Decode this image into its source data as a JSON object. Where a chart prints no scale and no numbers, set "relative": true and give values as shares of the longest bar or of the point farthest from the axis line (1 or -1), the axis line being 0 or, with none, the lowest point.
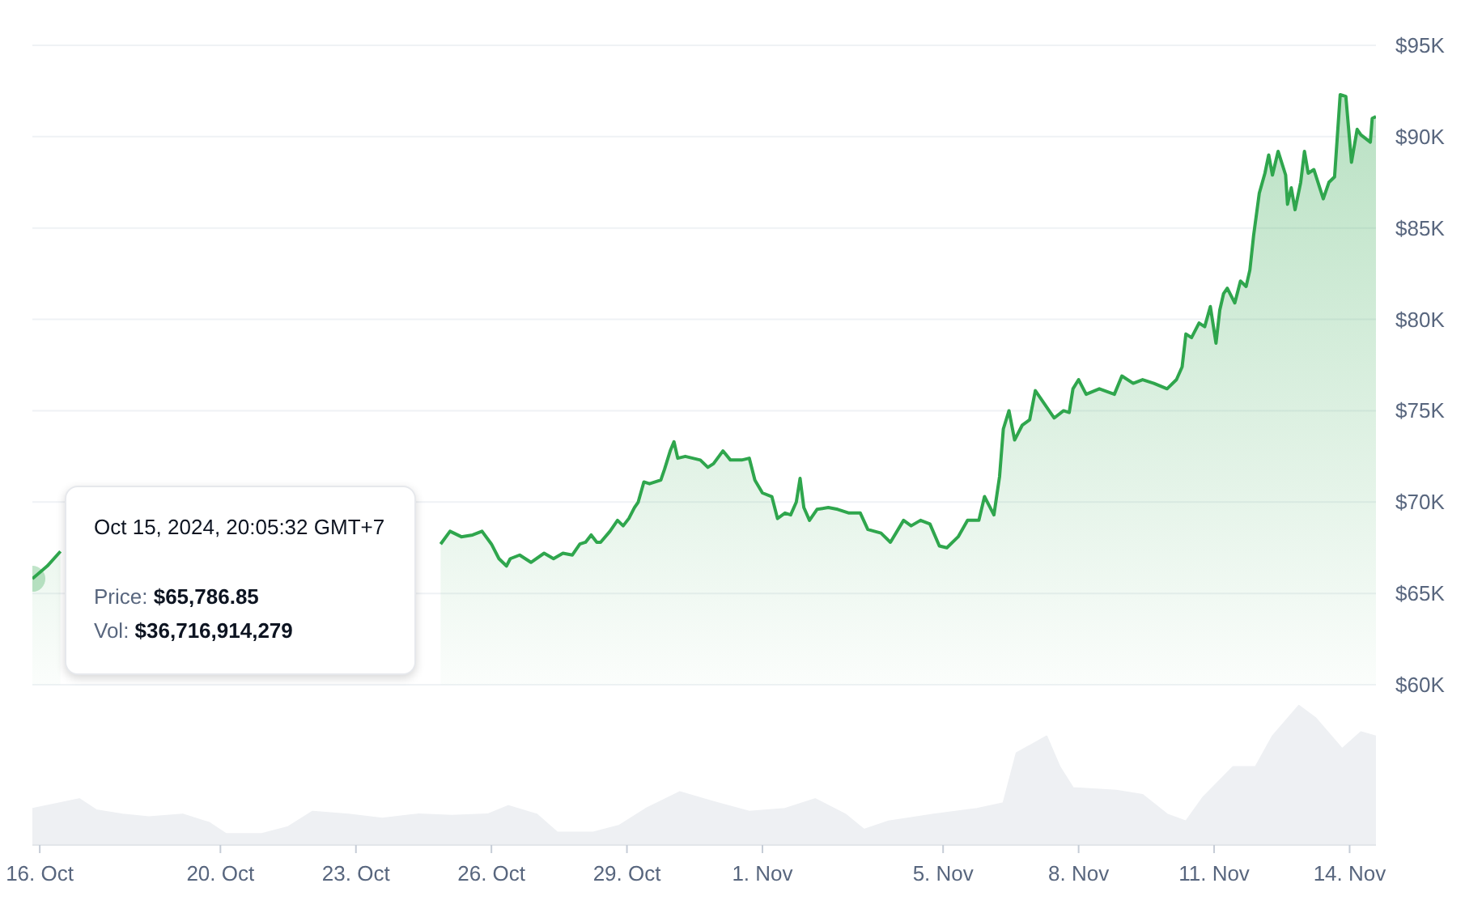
{
  "chart_data": [
    {
      "type": "area",
      "x": [
        "2024-10-15T20:05",
        "2024-10-16T04:00",
        "2024-10-16T11:00",
        "2024-10-17T00:00",
        "2024-10-18T00:00",
        "2024-10-19T00:00",
        "2024-10-20T00:00",
        "2024-10-21T00:00",
        "2024-10-22T00:00",
        "2024-10-23T00:00",
        "2024-10-24T00:00",
        "2024-10-24T12:00",
        "2024-10-24T21:00",
        "2024-10-25T02:00",
        "2024-10-25T08:00",
        "2024-10-25T14:00",
        "2024-10-25T19:00",
        "2024-10-26T00:00",
        "2024-10-26T04:00",
        "2024-10-26T08:00",
        "2024-10-26T10:00",
        "2024-10-26T15:00",
        "2024-10-26T21:00",
        "2024-10-27T04:00",
        "2024-10-27T09:00",
        "2024-10-27T14:00",
        "2024-10-27T19:00",
        "2024-10-27T23:00",
        "2024-10-28T02:00",
        "2024-10-28T05:00",
        "2024-10-28T08:00",
        "2024-10-28T10:00",
        "2024-10-28T15:00",
        "2024-10-28T19:00",
        "2024-10-28T22:00",
        "2024-10-29T01:00",
        "2024-10-29T04:00",
        "2024-10-29T06:00",
        "2024-10-29T09:00",
        "2024-10-29T12:00",
        "2024-10-29T18:00",
        "2024-10-29T20:00",
        "2024-10-29T23:00",
        "2024-10-30T01:00",
        "2024-10-30T03:00",
        "2024-10-30T07:00",
        "2024-10-30T11:00",
        "2024-10-30T15:00",
        "2024-10-30T19:00",
        "2024-10-30T22:00",
        "2024-10-31T03:00",
        "2024-10-31T07:00",
        "2024-10-31T13:00",
        "2024-10-31T17:00",
        "2024-10-31T20:00",
        "2024-11-01T00:00",
        "2024-11-01T05:00",
        "2024-11-01T08:00",
        "2024-11-01T12:00",
        "2024-11-01T15:00",
        "2024-11-01T18:00",
        "2024-11-01T20:00",
        "2024-11-01T22:00",
        "2024-11-02T01:00",
        "2024-11-02T05:00",
        "2024-11-02T11:00",
        "2024-11-02T16:00",
        "2024-11-02T22:00",
        "2024-11-03T04:00",
        "2024-11-03T08:00",
        "2024-11-03T15:00",
        "2024-11-03T20:00",
        "2024-11-04T03:00",
        "2024-11-04T07:00",
        "2024-11-04T12:00",
        "2024-11-04T17:00",
        "2024-11-04T22:00",
        "2024-11-05T02:00",
        "2024-11-05T08:00",
        "2024-11-05T13:00",
        "2024-11-05T19:00",
        "2024-11-05T22:00",
        "2024-11-06T03:00",
        "2024-11-06T06:00",
        "2024-11-06T08:00",
        "2024-11-06T11:00",
        "2024-11-06T14:00",
        "2024-11-06T18:00",
        "2024-11-06T22:00",
        "2024-11-07T01:00",
        "2024-11-07T05:00",
        "2024-11-07T11:00",
        "2024-11-07T16:00",
        "2024-11-07T19:00",
        "2024-11-07T21:00",
        "2024-11-08T00:00",
        "2024-11-08T04:00",
        "2024-11-08T11:00",
        "2024-11-08T19:00",
        "2024-11-08T23:00",
        "2024-11-09T05:00",
        "2024-11-09T10:00",
        "2024-11-09T16:00",
        "2024-11-09T23:00",
        "2024-11-10T04:00",
        "2024-11-10T07:00",
        "2024-11-10T09:00",
        "2024-11-10T12:00",
        "2024-11-10T16:00",
        "2024-11-10T19:00",
        "2024-11-10T22:00",
        "2024-11-11T01:00",
        "2024-11-11T03:00",
        "2024-11-11T05:00",
        "2024-11-11T07:00",
        "2024-11-11T11:00",
        "2024-11-11T14:00",
        "2024-11-11T17:00",
        "2024-11-11T19:00",
        "2024-11-11T21:00",
        "2024-11-12T00:00",
        "2024-11-12T03:00",
        "2024-11-12T05:00",
        "2024-11-12T07:00",
        "2024-11-12T10:00",
        "2024-11-12T14:00",
        "2024-11-12T15:00",
        "2024-11-12T17:00",
        "2024-11-12T19:00",
        "2024-11-12T22:00",
        "2024-11-13T00:00",
        "2024-11-13T02:00",
        "2024-11-13T05:00",
        "2024-11-13T10:00",
        "2024-11-13T13:00",
        "2024-11-13T16:00",
        "2024-11-13T19:00",
        "2024-11-13T22:00",
        "2024-11-14T01:00",
        "2024-11-14T04:00",
        "2024-11-14T06:00",
        "2024-11-14T11:00",
        "2024-11-14T12:00",
        "2024-11-14T14:00"
      ],
      "series": [
        {
          "color": "#2fa64d",
          "values": [
            65800,
            66500,
            67300,
            null,
            null,
            null,
            null,
            null,
            null,
            null,
            null,
            null,
            67700,
            68400,
            68100,
            68200,
            68400,
            67700,
            66900,
            66500,
            66900,
            67100,
            66700,
            67200,
            66900,
            67200,
            67100,
            67700,
            67800,
            68200,
            67800,
            67800,
            68400,
            69000,
            68700,
            69100,
            69700,
            70000,
            71100,
            71000,
            71200,
            71800,
            72800,
            73300,
            72400,
            72500,
            72400,
            72300,
            71900,
            72100,
            72800,
            72300,
            72300,
            72400,
            71200,
            70500,
            70300,
            69100,
            69400,
            69300,
            70000,
            71300,
            69700,
            69000,
            69600,
            69700,
            69600,
            69400,
            69400,
            68500,
            68300,
            67800,
            69000,
            68700,
            69000,
            68800,
            67600,
            67500,
            68100,
            69000,
            69000,
            70300,
            69300,
            71400,
            74000,
            75000,
            73400,
            74200,
            74500,
            76100,
            75500,
            74600,
            75000,
            74900,
            76200,
            76700,
            75900,
            76200,
            75900,
            76900,
            76500,
            76700,
            76500,
            76200,
            76700,
            77400,
            79200,
            79000,
            79800,
            79600,
            80700,
            78700,
            80500,
            81400,
            81700,
            80900,
            82100,
            81800,
            82700,
            84600,
            86900,
            88000,
            89000,
            87900,
            89200,
            87900,
            86300,
            87200,
            86000,
            87500,
            89200,
            88000,
            88200,
            86600,
            87500,
            87800,
            92300,
            92200,
            88600,
            90400,
            90100,
            89700,
            91000,
            91100
          ]
        }
      ],
      "xlim": [
        "2024-10-15T20:05",
        "2024-11-14T14:00"
      ],
      "ylim": [
        60000,
        95000
      ],
      "yticks": [
        {
          "value": 60000,
          "label": "$60K"
        },
        {
          "value": 65000,
          "label": "$65K"
        },
        {
          "value": 70000,
          "label": "$70K"
        },
        {
          "value": 75000,
          "label": "$75K"
        },
        {
          "value": 80000,
          "label": "$80K"
        },
        {
          "value": 85000,
          "label": "$85K"
        },
        {
          "value": 90000,
          "label": "$90K"
        },
        {
          "value": 95000,
          "label": "$95K"
        }
      ],
      "grid": "y",
      "tick_labels": "y",
      "annotations": [
        "Oct 15, 2024, 20:05:32 GMT+7",
        "Price: $65,786.85",
        "Vol: $36,716,914,279"
      ]
    },
    {
      "type": "area",
      "x": [
        "2024-10-15T20:05",
        "2024-10-16T21:00",
        "2024-10-17T06:00",
        "2024-10-17T20:00",
        "2024-10-18T10:00",
        "2024-10-19T04:00",
        "2024-10-19T18:00",
        "2024-10-20T03:00",
        "2024-10-20T22:00",
        "2024-10-21T12:00",
        "2024-10-22T01:00",
        "2024-10-22T20:00",
        "2024-10-23T14:00",
        "2024-10-24T09:00",
        "2024-10-25T03:00",
        "2024-10-25T22:00",
        "2024-10-26T09:00",
        "2024-10-27T00:00",
        "2024-10-27T11:00",
        "2024-10-28T06:00",
        "2024-10-28T20:00",
        "2024-10-29T10:00",
        "2024-10-30T04:00",
        "2024-10-30T22:00",
        "2024-10-31T17:00",
        "2024-11-01T12:00",
        "2024-11-02T04:00",
        "2024-11-02T20:00",
        "2024-11-03T06:00",
        "2024-11-03T19:00",
        "2024-11-04T19:00",
        "2024-11-05T18:00",
        "2024-11-06T08:00",
        "2024-11-06T15:00",
        "2024-11-07T07:00",
        "2024-11-07T14:00",
        "2024-11-07T21:00",
        "2024-11-08T20:00",
        "2024-11-09T10:00",
        "2024-11-09T23:00",
        "2024-11-10T09:00",
        "2024-11-10T18:00",
        "2024-11-11T10:00",
        "2024-11-11T22:00",
        "2024-11-12T07:00",
        "2024-11-12T21:00",
        "2024-11-13T06:00",
        "2024-11-13T20:00",
        "2024-11-14T06:00",
        "2024-11-14T14:00"
      ],
      "series": [
        {
          "color": "#eef0f3",
          "values": [
            0.26,
            0.33,
            0.25,
            0.22,
            0.2,
            0.22,
            0.16,
            0.08,
            0.08,
            0.13,
            0.24,
            0.22,
            0.19,
            0.22,
            0.21,
            0.22,
            0.28,
            0.22,
            0.09,
            0.09,
            0.14,
            0.26,
            0.38,
            0.31,
            0.24,
            0.26,
            0.33,
            0.22,
            0.11,
            0.17,
            0.22,
            0.26,
            0.3,
            0.66,
            0.78,
            0.56,
            0.41,
            0.39,
            0.36,
            0.22,
            0.17,
            0.34,
            0.56,
            0.56,
            0.78,
            1,
            0.91,
            0.69,
            0.81,
            0.78
          ]
        }
      ],
      "relative": true,
      "xlim": [
        "2024-10-15T20:05",
        "2024-11-14T14:00"
      ],
      "xticks": [
        {
          "value": "2024-10-16",
          "label": "16. Oct"
        },
        {
          "value": "2024-10-20",
          "label": "20. Oct"
        },
        {
          "value": "2024-10-23",
          "label": "23. Oct"
        },
        {
          "value": "2024-10-26",
          "label": "26. Oct"
        },
        {
          "value": "2024-10-29",
          "label": "29. Oct"
        },
        {
          "value": "2024-11-01",
          "label": "1. Nov"
        },
        {
          "value": "2024-11-05",
          "label": "5. Nov"
        },
        {
          "value": "2024-11-08",
          "label": "8. Nov"
        },
        {
          "value": "2024-11-11",
          "label": "11. Nov"
        },
        {
          "value": "2024-11-14",
          "label": "14. Nov"
        }
      ],
      "tick_labels": "x"
    }
  ]
}
